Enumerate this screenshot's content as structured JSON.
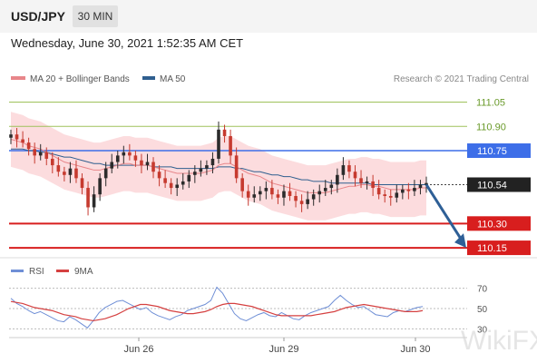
{
  "header": {
    "symbol": "USD/JPY",
    "timeframe": "30 MIN",
    "timestamp": "Wednesday, June 30, 2021 1:52:35 AM CET"
  },
  "legend": {
    "ma20_label": "MA 20 + Bollinger Bands",
    "ma50_label": "MA 50",
    "credit": "Research © 2021 Trading Central",
    "rsi_label": "RSI",
    "rsi_ma_label": "9MA"
  },
  "watermark": "WikiFX",
  "colors": {
    "ma20": "#e8868a",
    "ma50": "#2f5f8f",
    "up": "#2b2b2b",
    "down": "#c63a2f",
    "resistance_blue": "#3d6ee8",
    "support_red": "#d81e1e",
    "target_green": "#9fc25c",
    "band": "#fbd6d8",
    "rsi": "#6f8fd6",
    "rsi_ma": "#d54040",
    "arrow": "#2e5f96"
  },
  "chart_data": [
    {
      "type": "line",
      "title": "USD/JPY",
      "xlabel": "",
      "ylabel": "",
      "x_ticks": [
        "Jun 26",
        "Jun 29",
        "Jun 30"
      ],
      "ylim": [
        110.1,
        111.12
      ],
      "current_price": 110.54,
      "levels": [
        {
          "value": 111.05,
          "label": "111.05",
          "color": "#9fc25c"
        },
        {
          "value": 110.9,
          "label": "110.90",
          "color": "#9fc25c"
        },
        {
          "value": 110.75,
          "label": "110.75",
          "color": "#3d6ee8"
        },
        {
          "value": 110.3,
          "label": "110.30",
          "color": "#d81e1e"
        },
        {
          "value": 110.15,
          "label": "110.15",
          "color": "#d81e1e"
        }
      ],
      "forecast_arrow": {
        "from": 110.54,
        "to": 110.15
      },
      "close": [
        110.85,
        110.82,
        110.8,
        110.76,
        110.72,
        110.74,
        110.7,
        110.66,
        110.62,
        110.6,
        110.64,
        110.58,
        110.52,
        110.4,
        110.48,
        110.58,
        110.64,
        110.68,
        110.72,
        110.74,
        110.72,
        110.69,
        110.66,
        110.68,
        110.62,
        110.58,
        110.55,
        110.52,
        110.54,
        110.56,
        110.6,
        110.62,
        110.64,
        110.66,
        110.7,
        110.88,
        110.84,
        110.72,
        110.58,
        110.5,
        110.46,
        110.48,
        110.5,
        110.52,
        110.48,
        110.46,
        110.5,
        110.47,
        110.44,
        110.42,
        110.45,
        110.48,
        110.5,
        110.52,
        110.54,
        110.6,
        110.66,
        110.62,
        110.58,
        110.55,
        110.56,
        110.52,
        110.48,
        110.47,
        110.46,
        110.49,
        110.51,
        110.5,
        110.52,
        110.54,
        110.55
      ],
      "ma20": [
        110.82,
        110.81,
        110.8,
        110.78,
        110.77,
        110.76,
        110.74,
        110.72,
        110.7,
        110.68,
        110.67,
        110.66,
        110.65,
        110.64,
        110.63,
        110.63,
        110.64,
        110.65,
        110.66,
        110.67,
        110.67,
        110.66,
        110.66,
        110.66,
        110.65,
        110.64,
        110.63,
        110.62,
        110.61,
        110.61,
        110.61,
        110.61,
        110.61,
        110.62,
        110.63,
        110.66,
        110.67,
        110.67,
        110.65,
        110.63,
        110.61,
        110.6,
        110.59,
        110.57,
        110.55,
        110.54,
        110.53,
        110.52,
        110.51,
        110.5,
        110.49,
        110.49,
        110.49,
        110.49,
        110.5,
        110.51,
        110.52,
        110.53,
        110.53,
        110.54,
        110.54,
        110.53,
        110.53,
        110.52,
        110.51,
        110.51,
        110.51,
        110.51,
        110.51,
        110.52,
        110.52
      ],
      "ma50": [
        110.76,
        110.76,
        110.76,
        110.75,
        110.75,
        110.74,
        110.74,
        110.73,
        110.72,
        110.71,
        110.71,
        110.7,
        110.69,
        110.68,
        110.67,
        110.67,
        110.66,
        110.66,
        110.66,
        110.66,
        110.66,
        110.66,
        110.66,
        110.66,
        110.65,
        110.65,
        110.65,
        110.65,
        110.64,
        110.64,
        110.64,
        110.64,
        110.64,
        110.64,
        110.64,
        110.65,
        110.65,
        110.65,
        110.64,
        110.64,
        110.63,
        110.62,
        110.62,
        110.61,
        110.6,
        110.6,
        110.59,
        110.59,
        110.58,
        110.57,
        110.57,
        110.56,
        110.56,
        110.56,
        110.55,
        110.55,
        110.55,
        110.55,
        110.55,
        110.55,
        110.55,
        110.54,
        110.54,
        110.54,
        110.54,
        110.54,
        110.54,
        110.54,
        110.54,
        110.54,
        110.54
      ]
    },
    {
      "type": "line",
      "title": "RSI",
      "xlabel": "",
      "ylabel": "",
      "ylim": [
        25,
        75
      ],
      "y_ticks": [
        70,
        50,
        30
      ],
      "series": [
        {
          "name": "RSI",
          "values": [
            60,
            55,
            52,
            48,
            45,
            47,
            44,
            41,
            38,
            37,
            42,
            39,
            35,
            31,
            38,
            46,
            51,
            54,
            57,
            58,
            55,
            52,
            49,
            51,
            46,
            43,
            41,
            39,
            42,
            44,
            48,
            50,
            52,
            54,
            58,
            71,
            65,
            55,
            45,
            40,
            38,
            41,
            44,
            46,
            43,
            42,
            46,
            43,
            40,
            39,
            43,
            46,
            48,
            50,
            52,
            58,
            63,
            58,
            54,
            51,
            52,
            48,
            44,
            43,
            42,
            46,
            48,
            47,
            49,
            51,
            52
          ]
        },
        {
          "name": "9MA",
          "values": [
            57,
            56,
            55,
            53,
            51,
            50,
            49,
            48,
            46,
            44,
            43,
            42,
            40,
            39,
            38,
            39,
            40,
            42,
            44,
            47,
            50,
            52,
            54,
            54,
            53,
            52,
            50,
            48,
            47,
            46,
            45,
            45,
            46,
            47,
            49,
            52,
            54,
            55,
            55,
            54,
            53,
            52,
            50,
            48,
            46,
            44,
            43,
            43,
            43,
            43,
            43,
            43,
            44,
            45,
            46,
            47,
            49,
            51,
            52,
            53,
            54,
            53,
            52,
            51,
            50,
            49,
            48,
            47,
            47,
            47,
            48
          ]
        }
      ]
    }
  ]
}
